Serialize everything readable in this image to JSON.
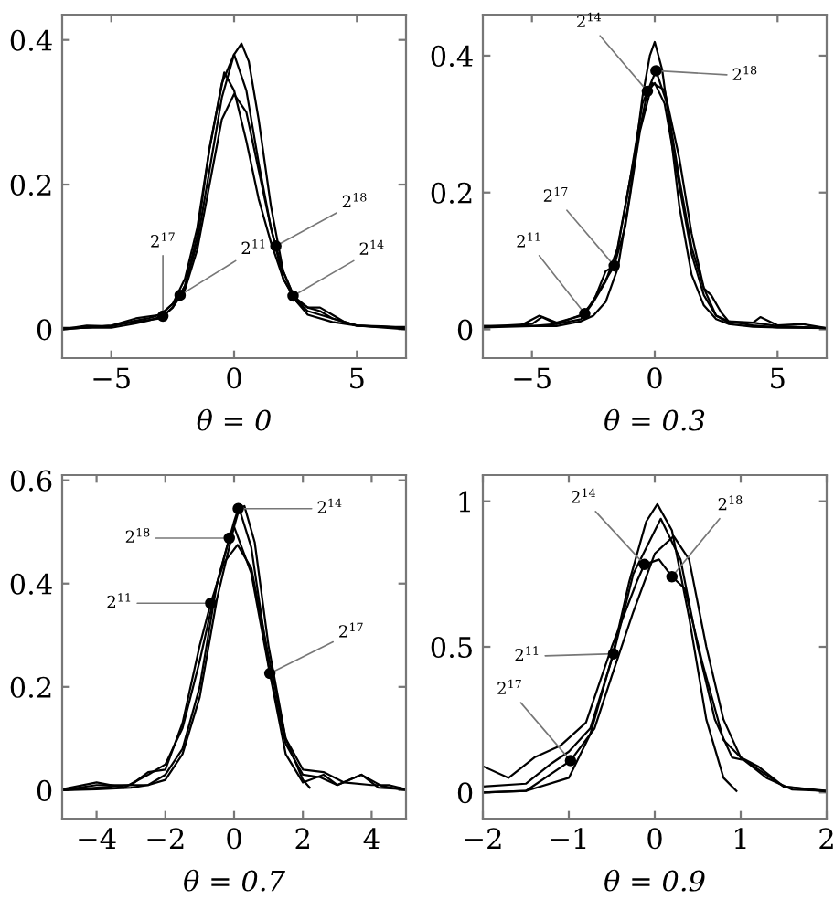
{
  "chart_data": [
    {
      "type": "line",
      "xlabel": "θ = 0",
      "xlim": [
        -7,
        7
      ],
      "ylim": [
        -0.04,
        0.435
      ],
      "xticks": [
        {
          "value": -5,
          "label": "−5"
        },
        0,
        5
      ],
      "yticks": [
        0,
        0.2,
        0.4
      ],
      "grid": false,
      "marker": "none",
      "line_style": "solid",
      "series": [
        {
          "color": "#000000",
          "x": [
            -7,
            -5,
            -4,
            -3,
            -2.5,
            -2,
            -1.5,
            -1,
            -0.5,
            0,
            0.3,
            0.6,
            1,
            1.5,
            2,
            2.5,
            3,
            4,
            5,
            7
          ],
          "values": [
            0,
            0.005,
            0.01,
            0.015,
            0.03,
            0.06,
            0.12,
            0.22,
            0.32,
            0.38,
            0.395,
            0.37,
            0.29,
            0.17,
            0.08,
            0.04,
            0.02,
            0.01,
            0.005,
            0
          ]
        },
        {
          "color": "#000000",
          "x": [
            -7,
            -5,
            -4,
            -3,
            -2.5,
            -2,
            -1.5,
            -1,
            -0.5,
            0,
            0.5,
            1,
            1.5,
            1.7,
            2,
            2.5,
            3,
            4,
            5,
            7
          ],
          "values": [
            0,
            0.005,
            0.015,
            0.02,
            0.035,
            0.07,
            0.14,
            0.25,
            0.34,
            0.38,
            0.33,
            0.23,
            0.14,
            0.115,
            0.08,
            0.04,
            0.025,
            0.015,
            0.005,
            0.002
          ]
        },
        {
          "color": "#000000",
          "x": [
            -7,
            -6,
            -5,
            -4,
            -3.5,
            -3,
            -2.5,
            -2.2,
            -2,
            -1.5,
            -1,
            -0.4,
            0,
            0.5,
            1,
            1.5,
            2,
            2.5,
            3,
            3.5,
            4,
            5,
            6,
            7
          ],
          "values": [
            0,
            0.005,
            0.004,
            0.012,
            0.015,
            0.02,
            0.035,
            0.047,
            0.06,
            0.13,
            0.25,
            0.355,
            0.33,
            0.26,
            0.18,
            0.12,
            0.07,
            0.04,
            0.03,
            0.025,
            0.015,
            0.005,
            0.004,
            0.002
          ]
        },
        {
          "color": "#000000",
          "x": [
            -7,
            -5,
            -4,
            -3.5,
            -2.9,
            -2.5,
            -2,
            -1.5,
            -1,
            -0.5,
            0,
            0.5,
            1,
            1.5,
            2,
            2.4,
            3,
            3.5,
            4,
            4.5,
            5,
            6,
            7
          ],
          "values": [
            0.002,
            0.002,
            0.008,
            0.012,
            0.018,
            0.03,
            0.055,
            0.11,
            0.2,
            0.29,
            0.325,
            0.3,
            0.22,
            0.14,
            0.07,
            0.046,
            0.03,
            0.03,
            0.02,
            0.01,
            0.005,
            0.003,
            0.003
          ]
        }
      ],
      "annotations": [
        {
          "text": "2$^{17}$",
          "x": -2.9,
          "y": 0.018
        },
        {
          "text": "2$^{11}$",
          "x": -2.2,
          "y": 0.047
        },
        {
          "text": "2$^{18}$",
          "x": 1.7,
          "y": 0.115
        },
        {
          "text": "2$^{14}$",
          "x": 2.4,
          "y": 0.046
        }
      ]
    },
    {
      "type": "line",
      "xlabel": "θ = 0.3",
      "xlim": [
        -7,
        7
      ],
      "ylim": [
        -0.042,
        0.46
      ],
      "xticks": [
        {
          "value": -5,
          "label": "−5"
        },
        0,
        5
      ],
      "yticks": [
        0,
        0.2,
        0.4
      ],
      "grid": false,
      "marker": "none",
      "line_style": "solid",
      "series": [
        {
          "color": "#000000",
          "x": [
            -7,
            -5,
            -4,
            -3,
            -2.5,
            -2,
            -1.5,
            -1,
            -0.5,
            -0.2,
            0,
            0.3,
            0.6,
            1,
            1.5,
            2,
            2.5,
            3,
            4,
            5,
            7
          ],
          "values": [
            0.005,
            0.005,
            0.005,
            0.012,
            0.02,
            0.04,
            0.09,
            0.2,
            0.34,
            0.4,
            0.42,
            0.38,
            0.3,
            0.18,
            0.08,
            0.035,
            0.015,
            0.008,
            0.004,
            0.003,
            0.002
          ]
        },
        {
          "color": "#000000",
          "x": [
            -7,
            -5.5,
            -4.7,
            -4,
            -3,
            -2.5,
            -2,
            -1.5,
            -1,
            -0.5,
            0.05,
            0.5,
            1,
            1.5,
            2,
            2.3,
            2.7,
            3,
            4,
            5,
            6,
            7
          ],
          "values": [
            0.005,
            0.005,
            0.02,
            0.01,
            0.02,
            0.04,
            0.07,
            0.12,
            0.22,
            0.33,
            0.378,
            0.33,
            0.22,
            0.12,
            0.06,
            0.05,
            0.025,
            0.012,
            0.006,
            0.003,
            0.003,
            0.002
          ]
        },
        {
          "color": "#000000",
          "x": [
            -7,
            -5,
            -4,
            -2.85,
            -2.2,
            -1.65,
            -1,
            -0.3,
            0,
            0.4,
            1,
            1.5,
            2,
            2.5,
            3,
            4,
            5,
            7
          ],
          "values": [
            0.003,
            0.005,
            0.008,
            0.023,
            0.06,
            0.093,
            0.22,
            0.348,
            0.36,
            0.33,
            0.21,
            0.11,
            0.05,
            0.02,
            0.01,
            0.01,
            0.005,
            0.002
          ]
        },
        {
          "color": "#000000",
          "x": [
            -7,
            -5,
            -4.6,
            -4,
            -3,
            -2.5,
            -2,
            -1.65,
            -1.2,
            -0.6,
            -0.1,
            0.4,
            1,
            1.5,
            2,
            2.5,
            3,
            4,
            4.3,
            5,
            6,
            7
          ],
          "values": [
            0.004,
            0.008,
            0.018,
            0.008,
            0.015,
            0.04,
            0.085,
            0.093,
            0.15,
            0.29,
            0.36,
            0.35,
            0.25,
            0.14,
            0.06,
            0.02,
            0.012,
            0.01,
            0.018,
            0.006,
            0.008,
            0.002
          ]
        }
      ],
      "annotations": [
        {
          "text": "2$^{14}$",
          "x": -0.3,
          "y": 0.348
        },
        {
          "text": "2$^{18}$",
          "x": 0.05,
          "y": 0.378
        },
        {
          "text": "2$^{17}$",
          "x": -1.65,
          "y": 0.093
        },
        {
          "text": "2$^{11}$",
          "x": -2.85,
          "y": 0.023
        }
      ]
    },
    {
      "type": "line",
      "xlabel": "θ = 0.7",
      "xlim": [
        -5,
        5
      ],
      "ylim": [
        -0.055,
        0.61
      ],
      "xticks": [
        {
          "value": -4,
          "label": "−4"
        },
        {
          "value": -2,
          "label": "−2"
        },
        0,
        2,
        4
      ],
      "yticks": [
        0,
        0.2,
        0.4,
        0.6
      ],
      "grid": false,
      "marker": "none",
      "line_style": "solid",
      "series": [
        {
          "color": "#000000",
          "x": [
            -5,
            -4,
            -3,
            -2.5,
            -2,
            -1.5,
            -1,
            -0.5,
            0,
            0.12,
            0.3,
            0.6,
            1,
            1.5,
            2,
            2.2
          ],
          "values": [
            0,
            0.002,
            0.005,
            0.01,
            0.03,
            0.08,
            0.2,
            0.4,
            0.52,
            0.545,
            0.55,
            0.48,
            0.28,
            0.1,
            0.02,
            0.005
          ]
        },
        {
          "color": "#000000",
          "x": [
            -5,
            -4,
            -3.2,
            -2.5,
            -2,
            -1.5,
            -1,
            -0.5,
            -0.14,
            0,
            0.5,
            1,
            1.5,
            2,
            2.5,
            3,
            3.7,
            4.2,
            5
          ],
          "values": [
            0.002,
            0.015,
            0.005,
            0.03,
            0.05,
            0.12,
            0.25,
            0.4,
            0.488,
            0.51,
            0.42,
            0.24,
            0.09,
            0.03,
            0.025,
            0.01,
            0.03,
            0.005,
            0.002
          ]
        },
        {
          "color": "#000000",
          "x": [
            -5,
            -4,
            -3,
            -2.5,
            -2,
            -1.5,
            -1,
            -0.68,
            -0.3,
            0.1,
            0.5,
            1,
            1.5,
            2,
            2.6,
            3.2,
            4,
            4.5,
            5
          ],
          "values": [
            0,
            0.005,
            0.01,
            0.035,
            0.04,
            0.13,
            0.28,
            0.362,
            0.44,
            0.475,
            0.43,
            0.26,
            0.1,
            0.04,
            0.035,
            0.015,
            0.01,
            0.01,
            0.002
          ]
        },
        {
          "color": "#000000",
          "x": [
            -5,
            -4,
            -3,
            -2.5,
            -2,
            -1.5,
            -1,
            -0.5,
            0,
            0.15,
            0.5,
            1.04,
            1.5,
            2,
            2.6,
            3,
            3.7,
            4.3,
            5
          ],
          "values": [
            0,
            0.01,
            0.01,
            0.01,
            0.02,
            0.07,
            0.18,
            0.37,
            0.51,
            0.545,
            0.47,
            0.226,
            0.07,
            0.015,
            0.03,
            0.01,
            0.03,
            0.008,
            0
          ]
        }
      ],
      "annotations": [
        {
          "text": "2$^{14}$",
          "x": 0.12,
          "y": 0.545
        },
        {
          "text": "2$^{18}$",
          "x": -0.14,
          "y": 0.488
        },
        {
          "text": "2$^{11}$",
          "x": -0.68,
          "y": 0.362
        },
        {
          "text": "2$^{17}$",
          "x": 1.04,
          "y": 0.226
        }
      ]
    },
    {
      "type": "line",
      "xlabel": "θ = 0.9",
      "xlim": [
        -2,
        2
      ],
      "ylim": [
        -0.09,
        1.09
      ],
      "xticks": [
        {
          "value": -2,
          "label": "−2"
        },
        {
          "value": -1,
          "label": "−1"
        },
        0,
        1,
        2
      ],
      "yticks": [
        0,
        0.5,
        1
      ],
      "grid": false,
      "marker": "none",
      "line_style": "solid",
      "series": [
        {
          "color": "#000000",
          "x": [
            -2,
            -1.5,
            -1,
            -0.75,
            -0.5,
            -0.3,
            -0.1,
            0.03,
            0.2,
            0.4,
            0.6,
            0.8,
            0.95
          ],
          "values": [
            0,
            0.005,
            0.05,
            0.2,
            0.46,
            0.72,
            0.93,
            0.99,
            0.9,
            0.6,
            0.25,
            0.05,
            0.005
          ]
        },
        {
          "color": "#000000",
          "x": [
            -2,
            -1.5,
            -1.2,
            -1,
            -0.75,
            -0.48,
            -0.25,
            0.07,
            0.3,
            0.5,
            0.7,
            0.9,
            1.05,
            1.2,
            1.5,
            2
          ],
          "values": [
            0.02,
            0.03,
            0.1,
            0.14,
            0.22,
            0.476,
            0.75,
            0.94,
            0.8,
            0.5,
            0.25,
            0.12,
            0.11,
            0.08,
            0.02,
            0.005
          ]
        },
        {
          "color": "#000000",
          "x": [
            -2,
            -1.7,
            -1.4,
            -1.1,
            -0.8,
            -0.5,
            -0.2,
            -0.12,
            0.05,
            0.2,
            0.35,
            0.55,
            0.8,
            1,
            1.3,
            1.6,
            2
          ],
          "values": [
            0.09,
            0.05,
            0.12,
            0.16,
            0.24,
            0.5,
            0.73,
            0.783,
            0.8,
            0.741,
            0.7,
            0.45,
            0.18,
            0.12,
            0.05,
            0.01,
            0.005
          ]
        },
        {
          "color": "#000000",
          "x": [
            -2,
            -1.5,
            -0.98,
            -0.7,
            -0.5,
            -0.25,
            0,
            0.22,
            0.4,
            0.6,
            0.8,
            1,
            1.2,
            1.5,
            2
          ],
          "values": [
            0,
            0.005,
            0.109,
            0.22,
            0.4,
            0.62,
            0.82,
            0.88,
            0.8,
            0.5,
            0.25,
            0.12,
            0.09,
            0.02,
            0.003
          ]
        }
      ],
      "annotations": [
        {
          "text": "2$^{14}$",
          "x": -0.12,
          "y": 0.783
        },
        {
          "text": "2$^{18}$",
          "x": 0.2,
          "y": 0.741
        },
        {
          "text": "2$^{11}$",
          "x": -0.48,
          "y": 0.476
        },
        {
          "text": "2$^{17}$",
          "x": -0.98,
          "y": 0.109
        }
      ]
    }
  ]
}
